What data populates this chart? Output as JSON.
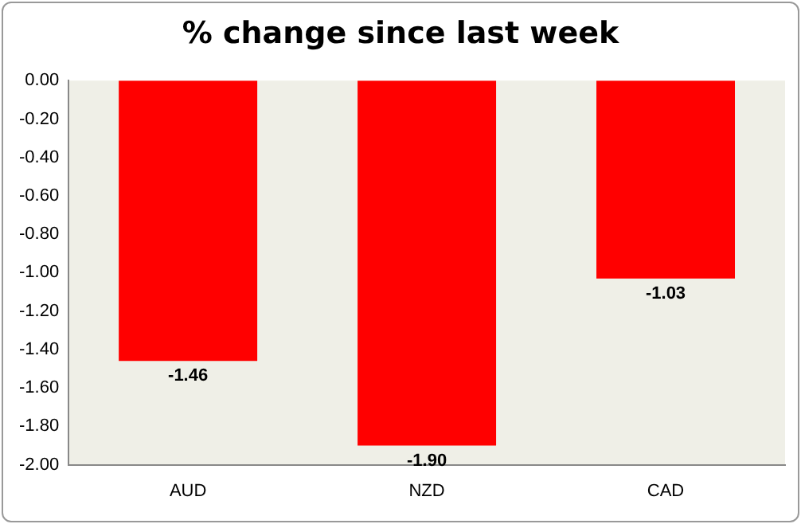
{
  "chart_data": {
    "type": "bar",
    "title": "% change since last week",
    "categories": [
      "AUD",
      "NZD",
      "CAD"
    ],
    "values": [
      -1.46,
      -1.9,
      -1.03
    ],
    "color": "#ff0000",
    "ylim": [
      -2,
      0
    ],
    "yticks": [
      {
        "value": 0,
        "label": "0.00"
      },
      {
        "value": -0.2,
        "label": "-0.20"
      },
      {
        "value": -0.4,
        "label": "-0.40"
      },
      {
        "value": -0.6,
        "label": "-0.60"
      },
      {
        "value": -0.8,
        "label": "-0.80"
      },
      {
        "value": -1,
        "label": "-1.00"
      },
      {
        "value": -1.2,
        "label": "-1.20"
      },
      {
        "value": -1.4,
        "label": "-1.40"
      },
      {
        "value": -1.6,
        "label": "-1.60"
      },
      {
        "value": -1.8,
        "label": "-1.80"
      },
      {
        "value": -2,
        "label": "-2.00"
      }
    ],
    "value_labels": [
      "-1.46",
      "-1.90",
      "-1.03"
    ],
    "grid": false,
    "legend": false
  }
}
